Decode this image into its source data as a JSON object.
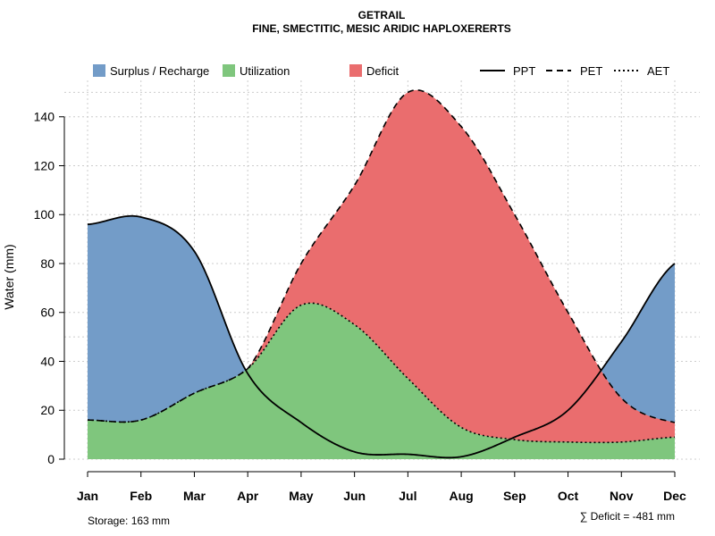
{
  "chart_data": {
    "type": "area",
    "title": "GETRAIL",
    "subtitle": "FINE, SMECTITIC, MESIC ARIDIC HAPLOXERERTS",
    "xlabel": "",
    "ylabel": "Water (mm)",
    "ylim": [
      0,
      150
    ],
    "yticks": [
      0,
      20,
      40,
      60,
      80,
      100,
      120,
      140
    ],
    "grid": true,
    "legend_position": "top",
    "categories": [
      "Jan",
      "Feb",
      "Mar",
      "Apr",
      "May",
      "Jun",
      "Jul",
      "Aug",
      "Sep",
      "Oct",
      "Nov",
      "Dec"
    ],
    "series": [
      {
        "name": "PPT",
        "line": "solid",
        "values": [
          96,
          99,
          85,
          35,
          15,
          3,
          2,
          1,
          9,
          20,
          48,
          80
        ]
      },
      {
        "name": "PET",
        "line": "dashed",
        "values": [
          16,
          16,
          27,
          37,
          80,
          112,
          150,
          136,
          100,
          60,
          25,
          15
        ]
      },
      {
        "name": "AET",
        "line": "dotted",
        "values": [
          16,
          16,
          27,
          37,
          63,
          55,
          33,
          13,
          8,
          7,
          7,
          9
        ]
      }
    ],
    "areas": [
      {
        "name": "Surplus / Recharge",
        "color": "#739CC8"
      },
      {
        "name": "Utilization",
        "color": "#7FC67D"
      },
      {
        "name": "Deficit",
        "color": "#EA6D6E"
      }
    ],
    "annotations": {
      "storage": "Storage: 163 mm",
      "deficit": "∑ Deficit = -481 mm"
    }
  }
}
